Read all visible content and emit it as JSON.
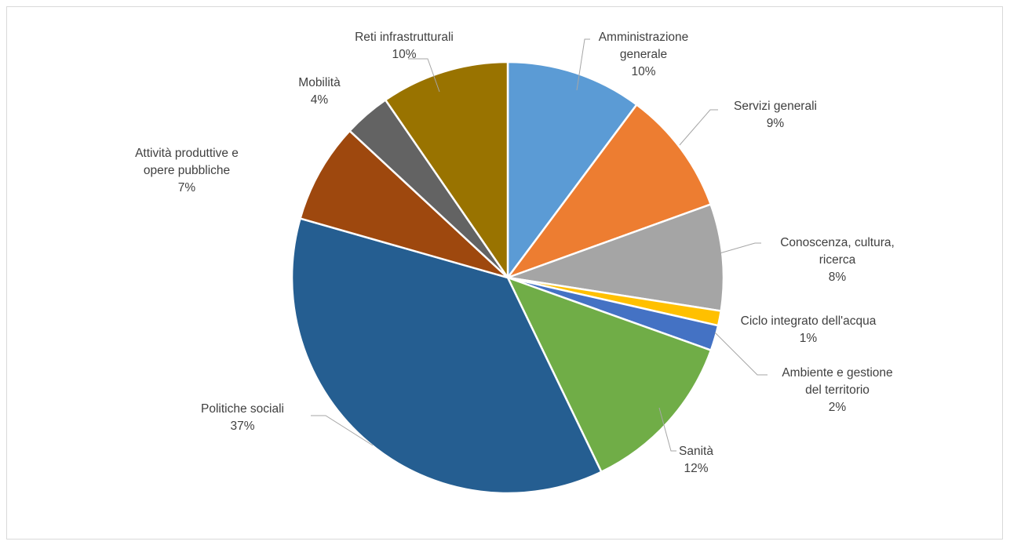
{
  "chart_data": {
    "type": "pie",
    "title": "",
    "slices": [
      {
        "label": [
          "Amministrazione",
          "generale"
        ],
        "value_label": "10%",
        "value": 10.2,
        "color": "#5B9BD5"
      },
      {
        "label": [
          "Servizi generali"
        ],
        "value_label": "9%",
        "value": 9.3,
        "color": "#ED7D31"
      },
      {
        "label": [
          "Conoscenza, cultura,",
          "ricerca"
        ],
        "value_label": "8%",
        "value": 8.0,
        "color": "#A5A5A5"
      },
      {
        "label": [
          "Ciclo integrato dell'acqua"
        ],
        "value_label": "1%",
        "value": 1.1,
        "color": "#FFC000"
      },
      {
        "label": [
          "Ambiente e gestione",
          "del territorio"
        ],
        "value_label": "2%",
        "value": 1.9,
        "color": "#4472C4"
      },
      {
        "label": [
          "Sanità"
        ],
        "value_label": "12%",
        "value": 12.4,
        "color": "#70AD47"
      },
      {
        "label": [
          "Politiche sociali"
        ],
        "value_label": "37%",
        "value": 36.6,
        "color": "#255E91"
      },
      {
        "label": [
          "Attività produttive e",
          "opere pubbliche"
        ],
        "value_label": "7%",
        "value": 7.5,
        "color": "#9E480E"
      },
      {
        "label": [
          "Mobilità"
        ],
        "value_label": "4%",
        "value": 3.5,
        "color": "#636363"
      },
      {
        "label": [
          "Reti infrastrutturali"
        ],
        "value_label": "10%",
        "value": 9.6,
        "color": "#997300"
      }
    ],
    "start_angle_deg": 0,
    "direction": "clockwise",
    "legend": "none",
    "data_labels": "outside-with-leader-lines"
  }
}
